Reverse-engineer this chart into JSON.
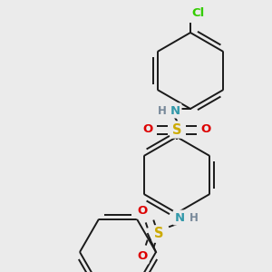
{
  "bg_color": "#ebebeb",
  "bond_color": "#1a1a1a",
  "atom_colors": {
    "N": "#3399aa",
    "H_N": "#778899",
    "S": "#ccaa00",
    "O": "#dd0000",
    "Cl": "#33cc00"
  },
  "font_size": 8.5,
  "bond_width": 1.4,
  "figsize": [
    3.0,
    3.0
  ],
  "dpi": 100
}
